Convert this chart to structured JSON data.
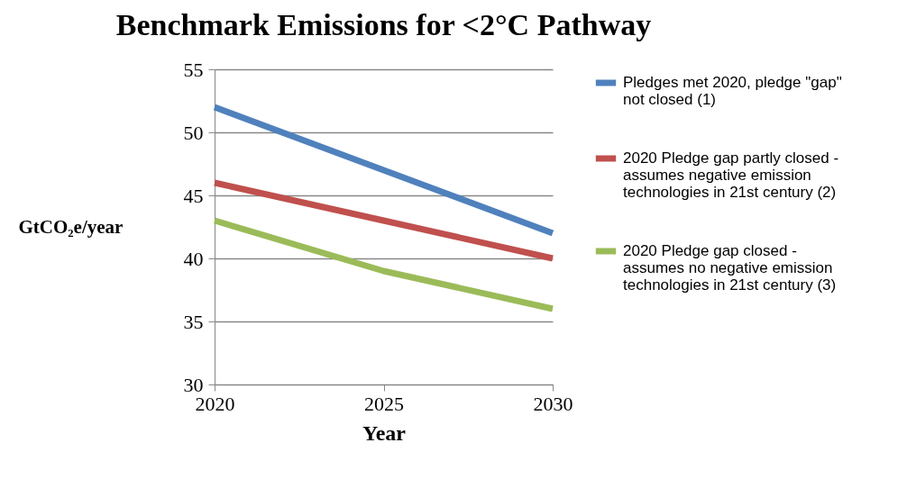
{
  "chart_data": {
    "type": "line",
    "title": "Benchmark Emissions for <2°C Pathway",
    "xlabel": "Year",
    "ylabel": "GtCO₂e/year",
    "x": [
      2020,
      2025,
      2030
    ],
    "series": [
      {
        "name": "Pledges met 2020, pledge \"gap\" not closed (1)",
        "color": "#4f81bd",
        "values": [
          52,
          47,
          42
        ]
      },
      {
        "name": "2020 Pledge gap partly closed - assumes negative emission technologies in 21st century (2)",
        "color": "#c0504d",
        "values": [
          46,
          43,
          40
        ]
      },
      {
        "name": "2020 Pledge gap closed - assumes no negative emission technologies in 21st century (3)",
        "color": "#9bbb59",
        "values": [
          43,
          39,
          36
        ]
      }
    ],
    "xlim": [
      2020,
      2030
    ],
    "xticks": [
      2020,
      2025,
      2030
    ],
    "ylim": [
      30,
      55
    ],
    "yticks": [
      30,
      35,
      40,
      45,
      50,
      55
    ],
    "grid": "y",
    "legend": "right"
  }
}
